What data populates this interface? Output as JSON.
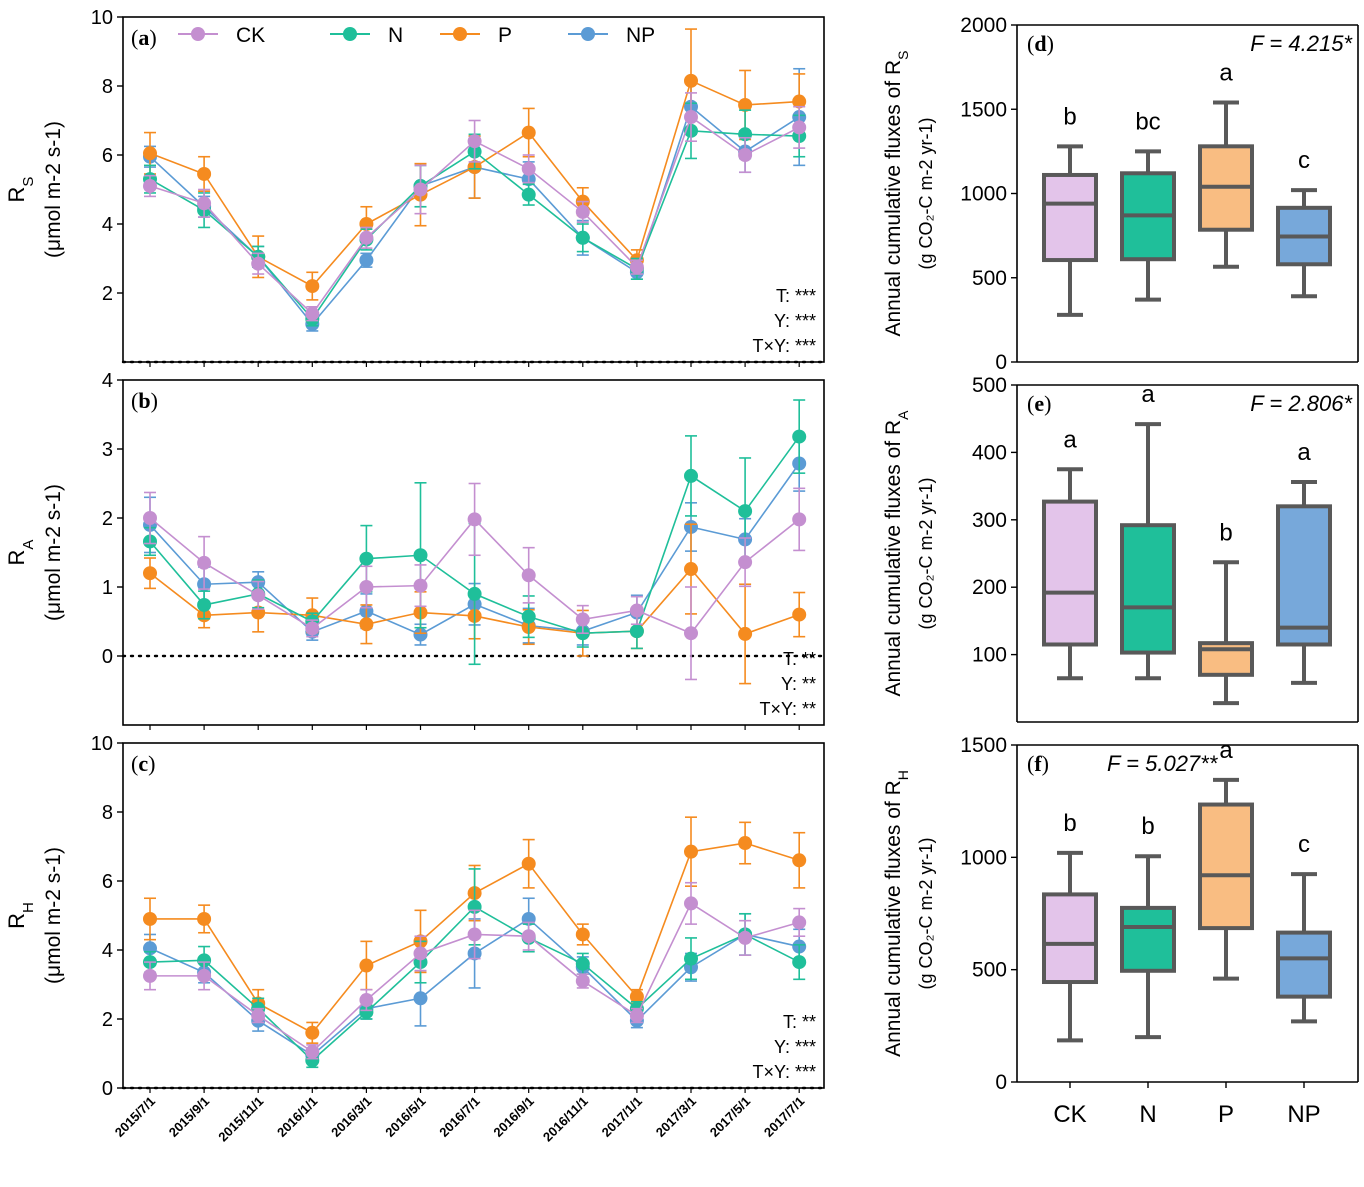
{
  "colors": {
    "CK": "#c48fd0",
    "N": "#1fbf9a",
    "P": "#f58b1f",
    "NP": "#5b9bd5",
    "box_CK": "#e3c4ea",
    "box_N": "#1fbf9a",
    "box_P": "#f9bd82",
    "box_NP": "#77a8da",
    "frame": "#000000",
    "box_edge": "#595959"
  },
  "chart_data": [
    {
      "panel": "a",
      "type": "line",
      "panel_label": "a",
      "ylabel_main": "R",
      "ylabel_sub": "S",
      "ylabel_unit": "(μmol m-2 s-1)",
      "ylim": [
        0,
        10
      ],
      "yticks": [
        2,
        4,
        6,
        8,
        10
      ],
      "x": [
        "2015/7/1",
        "2015/9/1",
        "2015/11/1",
        "2016/1/1",
        "2016/3/1",
        "2016/5/1",
        "2016/7/1",
        "2016/9/1",
        "2016/11/1",
        "2017/1/1",
        "2017/3/1",
        "2017/5/1",
        "2017/7/1"
      ],
      "legend": [
        "CK",
        "N",
        "P",
        "NP"
      ],
      "stats": [
        "T: ***",
        "Y: ***",
        "T×Y: ***"
      ],
      "series": [
        {
          "name": "CK",
          "values": [
            5.1,
            4.6,
            2.85,
            1.4,
            3.6,
            5.0,
            6.4,
            5.6,
            4.35,
            2.75,
            7.1,
            6.0,
            6.8
          ],
          "err": [
            0.3,
            0.4,
            0.3,
            0.2,
            0.3,
            0.7,
            0.6,
            0.4,
            0.3,
            0.2,
            0.7,
            0.5,
            0.6
          ]
        },
        {
          "name": "N",
          "values": [
            5.3,
            4.4,
            3.05,
            1.25,
            3.55,
            5.1,
            6.1,
            4.85,
            3.6,
            2.7,
            6.7,
            6.6,
            6.55
          ],
          "err": [
            0.4,
            0.5,
            0.3,
            0.2,
            0.3,
            0.6,
            0.5,
            0.3,
            0.4,
            0.3,
            0.8,
            0.7,
            0.6
          ]
        },
        {
          "name": "P",
          "values": [
            6.05,
            5.45,
            3.05,
            2.2,
            4.0,
            4.85,
            5.65,
            6.65,
            4.65,
            2.95,
            8.15,
            7.45,
            7.55
          ],
          "err": [
            0.6,
            0.5,
            0.6,
            0.4,
            0.5,
            0.9,
            0.9,
            0.7,
            0.4,
            0.3,
            1.5,
            1.0,
            0.8
          ]
        },
        {
          "name": "NP",
          "values": [
            5.95,
            4.5,
            3.05,
            1.1,
            2.95,
            5.1,
            5.65,
            5.3,
            3.6,
            2.6,
            7.4,
            6.1,
            7.1
          ],
          "err": [
            0.3,
            0.3,
            0.3,
            0.2,
            0.2,
            0.6,
            0.9,
            0.5,
            0.5,
            0.2,
            0.8,
            0.6,
            1.4
          ]
        }
      ]
    },
    {
      "panel": "b",
      "type": "line",
      "panel_label": "b",
      "ylabel_main": "R",
      "ylabel_sub": "A",
      "ylabel_unit": "(μmol m-2 s-1)",
      "ylim": [
        -1,
        4
      ],
      "yticks": [
        0,
        1,
        2,
        3,
        4
      ],
      "x": [
        "2015/7/1",
        "2015/9/1",
        "2015/11/1",
        "2016/1/1",
        "2016/3/1",
        "2016/5/1",
        "2016/7/1",
        "2016/9/1",
        "2016/11/1",
        "2017/1/1",
        "2017/3/1",
        "2017/5/1",
        "2017/7/1"
      ],
      "stats": [
        "T: **",
        "Y: **",
        "T×Y: **"
      ],
      "series": [
        {
          "name": "CK",
          "values": [
            2.0,
            1.35,
            0.88,
            0.4,
            1.0,
            1.02,
            1.98,
            1.17,
            0.53,
            0.66,
            0.33,
            1.36,
            1.98
          ],
          "err": [
            0.37,
            0.38,
            0.2,
            0.12,
            0.3,
            0.3,
            0.52,
            0.4,
            0.2,
            0.2,
            0.67,
            0.35,
            0.45
          ]
        },
        {
          "name": "N",
          "values": [
            1.66,
            0.74,
            0.9,
            0.5,
            1.41,
            1.46,
            0.9,
            0.57,
            0.33,
            0.36,
            2.61,
            2.1,
            3.18
          ],
          "err": [
            0.2,
            0.2,
            0.2,
            0.12,
            0.48,
            1.05,
            1.02,
            0.3,
            0.2,
            0.25,
            0.58,
            0.77,
            0.53
          ]
        },
        {
          "name": "P",
          "values": [
            1.2,
            0.59,
            0.63,
            0.59,
            0.46,
            0.63,
            0.58,
            0.42,
            0.33,
            0.36,
            1.26,
            0.32,
            0.6
          ],
          "err": [
            0.22,
            0.18,
            0.28,
            0.25,
            0.28,
            0.3,
            0.33,
            0.25,
            0.33,
            0.25,
            0.65,
            0.72,
            0.32
          ]
        },
        {
          "name": "NP",
          "values": [
            1.9,
            1.04,
            1.07,
            0.35,
            0.65,
            0.31,
            0.75,
            0.44,
            0.36,
            0.63,
            1.87,
            1.69,
            2.79
          ],
          "err": [
            0.4,
            0.25,
            0.15,
            0.12,
            0.25,
            0.15,
            0.3,
            0.25,
            0.2,
            0.25,
            0.35,
            0.3,
            0.4
          ]
        }
      ]
    },
    {
      "panel": "c",
      "type": "line",
      "panel_label": "c",
      "ylabel_main": "R",
      "ylabel_sub": "H",
      "ylabel_unit": "(μmol m-2 s-1)",
      "ylim": [
        0,
        10
      ],
      "yticks": [
        0,
        2,
        4,
        6,
        8,
        10
      ],
      "x": [
        "2015/7/1",
        "2015/9/1",
        "2015/11/1",
        "2016/1/1",
        "2016/3/1",
        "2016/5/1",
        "2016/7/1",
        "2016/9/1",
        "2016/11/1",
        "2017/1/1",
        "2017/3/1",
        "2017/5/1",
        "2017/7/1"
      ],
      "stats": [
        "T: **",
        "Y: ***",
        "T×Y: ***"
      ],
      "series": [
        {
          "name": "CK",
          "values": [
            3.25,
            3.25,
            2.1,
            1.05,
            2.55,
            3.9,
            4.45,
            4.4,
            3.1,
            2.1,
            5.35,
            4.35,
            4.8
          ],
          "err": [
            0.4,
            0.4,
            0.2,
            0.2,
            0.3,
            0.5,
            0.7,
            0.4,
            0.2,
            0.2,
            0.6,
            0.5,
            0.4
          ]
        },
        {
          "name": "N",
          "values": [
            3.65,
            3.7,
            2.3,
            0.8,
            2.2,
            3.65,
            5.25,
            4.35,
            3.6,
            2.3,
            3.75,
            4.45,
            3.65
          ],
          "err": [
            0.3,
            0.4,
            0.3,
            0.2,
            0.2,
            0.6,
            1.1,
            0.4,
            0.3,
            0.2,
            0.6,
            0.6,
            0.5
          ]
        },
        {
          "name": "P",
          "values": [
            4.9,
            4.9,
            2.45,
            1.6,
            3.55,
            4.25,
            5.65,
            6.5,
            4.45,
            2.65,
            6.85,
            7.1,
            6.6
          ],
          "err": [
            0.6,
            0.4,
            0.4,
            0.3,
            0.7,
            0.9,
            0.8,
            0.7,
            0.3,
            0.2,
            1.0,
            0.6,
            0.8
          ]
        },
        {
          "name": "NP",
          "values": [
            4.05,
            3.35,
            1.95,
            0.95,
            2.3,
            2.6,
            3.9,
            4.9,
            3.5,
            1.95,
            3.5,
            4.45,
            4.1
          ],
          "err": [
            0.4,
            0.3,
            0.3,
            0.2,
            0.3,
            0.8,
            1.0,
            0.6,
            0.3,
            0.2,
            0.4,
            0.6,
            0.5
          ]
        }
      ]
    },
    {
      "panel": "d",
      "type": "box",
      "panel_label": "d",
      "ylabel_line1": "Annual cumulative fluxes of R",
      "ylabel_sub": "S",
      "ylabel_line2": "(g CO₂-C m-2 yr-1)",
      "ylim": [
        0,
        2000
      ],
      "yticks": [
        0,
        500,
        1000,
        1500,
        2000
      ],
      "f_label": "F = 4.215*",
      "categories": [
        "CK",
        "N",
        "P",
        "NP"
      ],
      "boxes": [
        {
          "name": "CK",
          "min": 280,
          "q1": 605,
          "median": 940,
          "q3": 1110,
          "max": 1280,
          "letter": "b"
        },
        {
          "name": "N",
          "min": 370,
          "q1": 610,
          "median": 870,
          "q3": 1120,
          "max": 1250,
          "letter": "bc"
        },
        {
          "name": "P",
          "min": 565,
          "q1": 785,
          "median": 1040,
          "q3": 1280,
          "max": 1540,
          "letter": "a"
        },
        {
          "name": "NP",
          "min": 390,
          "q1": 580,
          "median": 745,
          "q3": 915,
          "max": 1020,
          "letter": "c"
        }
      ]
    },
    {
      "panel": "e",
      "type": "box",
      "panel_label": "e",
      "ylabel_line1": "Annual cumulative fluxes of R",
      "ylabel_sub": "A",
      "ylabel_line2": "(g CO₂-C m-2 yr-1)",
      "ylim": [
        0,
        500
      ],
      "yticks": [
        100,
        200,
        300,
        400,
        500
      ],
      "f_label": "F = 2.806*",
      "categories": [
        "CK",
        "N",
        "P",
        "NP"
      ],
      "boxes": [
        {
          "name": "CK",
          "min": 65,
          "q1": 115,
          "median": 192,
          "q3": 327,
          "max": 375,
          "letter": "a"
        },
        {
          "name": "N",
          "min": 65,
          "q1": 103,
          "median": 170,
          "q3": 292,
          "max": 442,
          "letter": "a"
        },
        {
          "name": "P",
          "min": 28,
          "q1": 70,
          "median": 108,
          "q3": 117,
          "max": 237,
          "letter": "b"
        },
        {
          "name": "NP",
          "min": 58,
          "q1": 115,
          "median": 140,
          "q3": 320,
          "max": 356,
          "letter": "a"
        }
      ]
    },
    {
      "panel": "f",
      "type": "box",
      "panel_label": "f",
      "ylabel_line1": "Annual cumulative fluxes of R",
      "ylabel_sub": "H",
      "ylabel_line2": "(g CO₂-C m-2 yr-1)",
      "ylim": [
        0,
        1500
      ],
      "yticks": [
        0,
        500,
        1000,
        1500
      ],
      "f_label": "F = 5.027**",
      "categories": [
        "CK",
        "N",
        "P",
        "NP"
      ],
      "boxes": [
        {
          "name": "CK",
          "min": 185,
          "q1": 445,
          "median": 615,
          "q3": 835,
          "max": 1020,
          "letter": "b"
        },
        {
          "name": "N",
          "min": 200,
          "q1": 495,
          "median": 690,
          "q3": 775,
          "max": 1005,
          "letter": "b"
        },
        {
          "name": "P",
          "min": 460,
          "q1": 685,
          "median": 920,
          "q3": 1235,
          "max": 1345,
          "letter": "a"
        },
        {
          "name": "NP",
          "min": 270,
          "q1": 380,
          "median": 550,
          "q3": 665,
          "max": 925,
          "letter": "c"
        }
      ]
    }
  ]
}
